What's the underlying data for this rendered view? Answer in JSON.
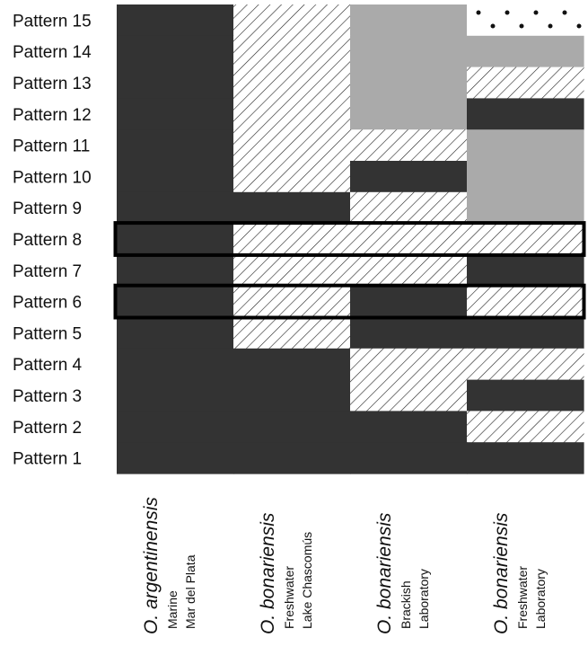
{
  "chart_data": {
    "type": "heatmap",
    "rows": [
      "Pattern 15",
      "Pattern 14",
      "Pattern 13",
      "Pattern 12",
      "Pattern 11",
      "Pattern 10",
      "Pattern 9",
      "Pattern 8",
      "Pattern 7",
      "Pattern 6",
      "Pattern 5",
      "Pattern 4",
      "Pattern 3",
      "Pattern 2",
      "Pattern 1"
    ],
    "columns": [
      {
        "species": "O. argentinensis",
        "line1": "Marine",
        "line2": "Mar del Plata"
      },
      {
        "species": "O. bonariensis",
        "line1": "Freshwater",
        "line2": "Lake Chascomús"
      },
      {
        "species": "O. bonariensis",
        "line1": "Brackish",
        "line2": "Laboratory"
      },
      {
        "species": "O. bonariensis",
        "line1": "Freshwater",
        "line2": "Laboratory"
      }
    ],
    "cells": [
      [
        "dark",
        "hatch",
        "gray",
        "dots"
      ],
      [
        "dark",
        "hatch",
        "gray",
        "gray"
      ],
      [
        "dark",
        "hatch",
        "gray",
        "hatch"
      ],
      [
        "dark",
        "hatch",
        "gray",
        "dark"
      ],
      [
        "dark",
        "hatch",
        "hatch",
        "gray"
      ],
      [
        "dark",
        "hatch",
        "dark",
        "gray"
      ],
      [
        "dark",
        "dark",
        "hatch",
        "gray"
      ],
      [
        "dark",
        "hatch",
        "hatch",
        "hatch"
      ],
      [
        "dark",
        "hatch",
        "hatch",
        "dark"
      ],
      [
        "dark",
        "hatch",
        "dark",
        "hatch"
      ],
      [
        "dark",
        "hatch",
        "dark",
        "dark"
      ],
      [
        "dark",
        "dark",
        "hatch",
        "hatch"
      ],
      [
        "dark",
        "dark",
        "hatch",
        "dark"
      ],
      [
        "dark",
        "dark",
        "dark",
        "hatch"
      ],
      [
        "dark",
        "dark",
        "dark",
        "dark"
      ]
    ],
    "highlighted_rows": [
      "Pattern 8",
      "Pattern 6"
    ],
    "fill_colors": {
      "dark": "#333333",
      "gray": "#aaaaaa",
      "hatch": "#ffffff",
      "dots": "#ffffff"
    }
  }
}
